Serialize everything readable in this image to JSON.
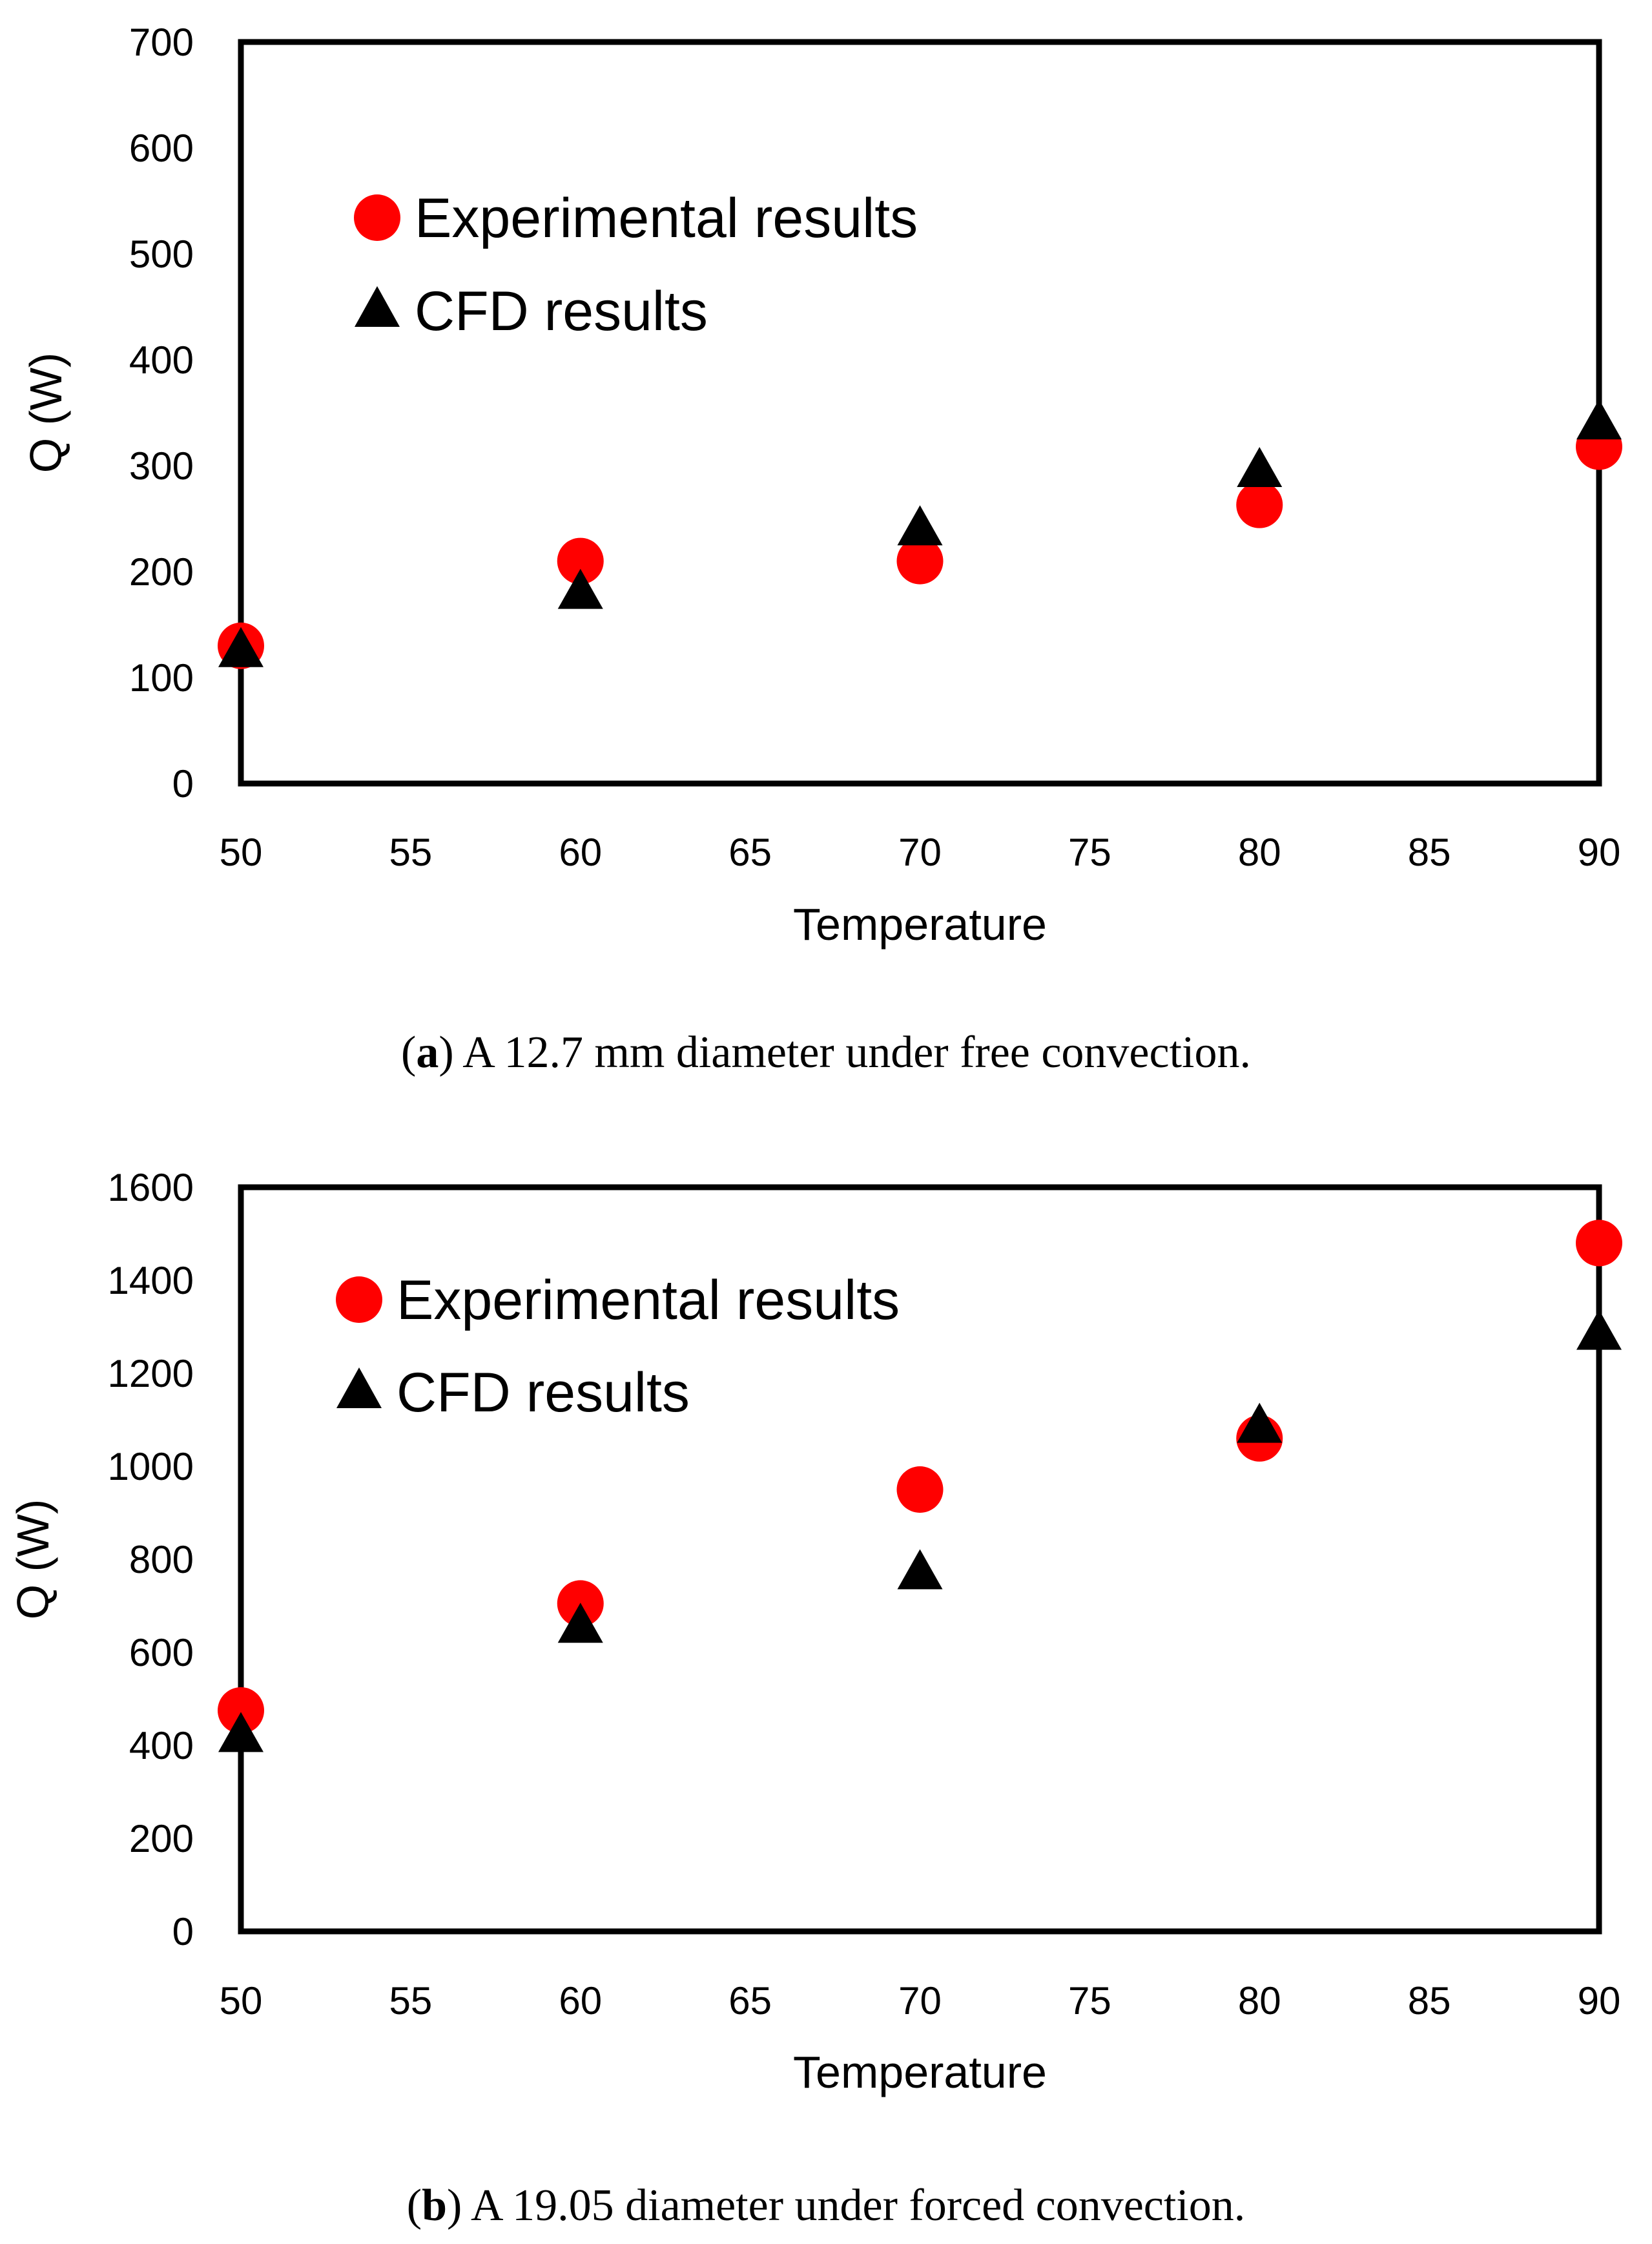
{
  "chart_data": [
    {
      "type": "scatter",
      "panel": "a",
      "caption_label": "a",
      "caption_text": "A 12.7 mm diameter under free convection.",
      "xlabel": "Temperature",
      "ylabel": "Q (W)",
      "xlim": [
        50,
        90
      ],
      "ylim": [
        0,
        700
      ],
      "xticks": [
        50,
        55,
        60,
        65,
        70,
        75,
        80,
        85,
        90
      ],
      "yticks": [
        0,
        100,
        200,
        300,
        400,
        500,
        600,
        700
      ],
      "legend_position": "top-left",
      "series": [
        {
          "name": "Experimental results",
          "marker": "circle",
          "color": "#ff0000",
          "x": [
            50,
            60,
            70,
            80,
            90
          ],
          "y": [
            130,
            210,
            210,
            263,
            318
          ]
        },
        {
          "name": "CFD results",
          "marker": "triangle",
          "color": "#000000",
          "x": [
            50,
            60,
            70,
            80,
            90
          ],
          "y": [
            125,
            180,
            240,
            295,
            340
          ]
        }
      ]
    },
    {
      "type": "scatter",
      "panel": "b",
      "caption_label": "b",
      "caption_text": "A 19.05 diameter under forced convection.",
      "xlabel": "Temperature",
      "ylabel": "Q (W)",
      "xlim": [
        50,
        90
      ],
      "ylim": [
        0,
        1600
      ],
      "xticks": [
        50,
        55,
        60,
        65,
        70,
        75,
        80,
        85,
        90
      ],
      "yticks": [
        0,
        200,
        400,
        600,
        800,
        1000,
        1200,
        1400,
        1600
      ],
      "legend_position": "top-left",
      "series": [
        {
          "name": "Experimental results",
          "marker": "circle",
          "color": "#ff0000",
          "x": [
            50,
            60,
            70,
            80,
            90
          ],
          "y": [
            475,
            705,
            950,
            1060,
            1480
          ]
        },
        {
          "name": "CFD results",
          "marker": "triangle",
          "color": "#000000",
          "x": [
            50,
            60,
            70,
            80,
            90
          ],
          "y": [
            420,
            655,
            770,
            1085,
            1285
          ]
        }
      ]
    }
  ]
}
